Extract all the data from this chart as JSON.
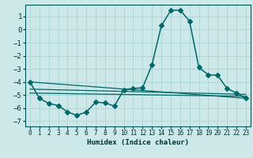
{
  "xlabel": "Humidex (Indice chaleur)",
  "xlim": [
    -0.5,
    23.5
  ],
  "ylim": [
    -7.4,
    1.9
  ],
  "yticks": [
    1,
    0,
    -1,
    -2,
    -3,
    -4,
    -5,
    -6,
    -7
  ],
  "xticks": [
    0,
    1,
    2,
    3,
    4,
    5,
    6,
    7,
    8,
    9,
    10,
    11,
    12,
    13,
    14,
    15,
    16,
    17,
    18,
    19,
    20,
    21,
    22,
    23
  ],
  "bg_color": "#cce8e8",
  "grid_color": "#aad4d4",
  "line_color": "#006868",
  "main_series": {
    "x": [
      0,
      1,
      2,
      3,
      4,
      5,
      6,
      7,
      8,
      9,
      10,
      11,
      12,
      13,
      14,
      15,
      16,
      17,
      18,
      19,
      20,
      21,
      22,
      23
    ],
    "y": [
      -4.0,
      -5.25,
      -5.65,
      -5.8,
      -6.3,
      -6.55,
      -6.3,
      -5.55,
      -5.6,
      -5.85,
      -4.6,
      -4.5,
      -4.45,
      -2.7,
      0.3,
      1.45,
      1.5,
      0.65,
      -2.9,
      -3.45,
      -3.5,
      -4.5,
      -4.85,
      -5.25
    ],
    "markersize": 3.0,
    "linewidth": 1.1
  },
  "ref_lines": [
    {
      "x0": 0,
      "y0": -4.0,
      "x1": 23,
      "y1": -5.25
    },
    {
      "x0": 0,
      "y0": -4.55,
      "x1": 23,
      "y1": -4.95
    },
    {
      "x0": 0,
      "y0": -4.85,
      "x1": 23,
      "y1": -5.1
    }
  ]
}
